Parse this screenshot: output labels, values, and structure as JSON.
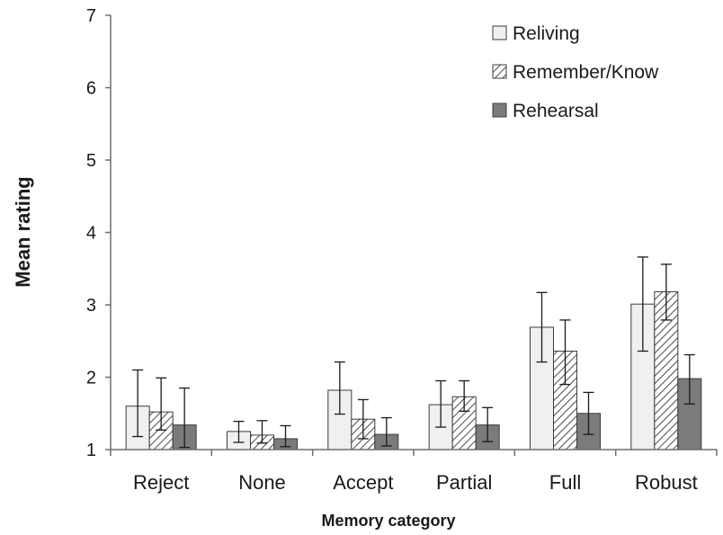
{
  "chart_data": {
    "type": "bar",
    "xlabel": "Memory category",
    "ylabel": "Mean rating",
    "ylim": [
      1,
      7
    ],
    "yticks": [
      1,
      2,
      3,
      4,
      5,
      6,
      7
    ],
    "grid": false,
    "legend_position": "top-right",
    "categories": [
      "Reject",
      "None",
      "Accept",
      "Partial",
      "Full",
      "Robust"
    ],
    "series": [
      {
        "name": "Reliving",
        "style": "light-solid",
        "color": "#f0f0f0",
        "values": [
          1.6,
          1.25,
          1.82,
          1.62,
          2.69,
          3.01
        ],
        "error_low": [
          1.18,
          1.1,
          1.49,
          1.31,
          2.21,
          2.36
        ],
        "error_high": [
          2.1,
          1.39,
          2.21,
          1.95,
          3.17,
          3.66
        ]
      },
      {
        "name": "Remember/Know",
        "style": "hatched",
        "color": "#bfbfbf",
        "values": [
          1.52,
          1.2,
          1.42,
          1.73,
          2.36,
          3.18
        ],
        "error_low": [
          1.27,
          1.09,
          1.15,
          1.53,
          1.9,
          2.79
        ],
        "error_high": [
          1.99,
          1.4,
          1.69,
          1.95,
          2.79,
          3.56
        ]
      },
      {
        "name": "Rehearsal",
        "style": "dark-solid",
        "color": "#7b7b7b",
        "values": [
          1.34,
          1.15,
          1.21,
          1.34,
          1.5,
          1.98
        ],
        "error_low": [
          1.03,
          1.04,
          1.05,
          1.11,
          1.21,
          1.63
        ],
        "error_high": [
          1.85,
          1.33,
          1.44,
          1.58,
          1.79,
          2.31
        ]
      }
    ]
  }
}
